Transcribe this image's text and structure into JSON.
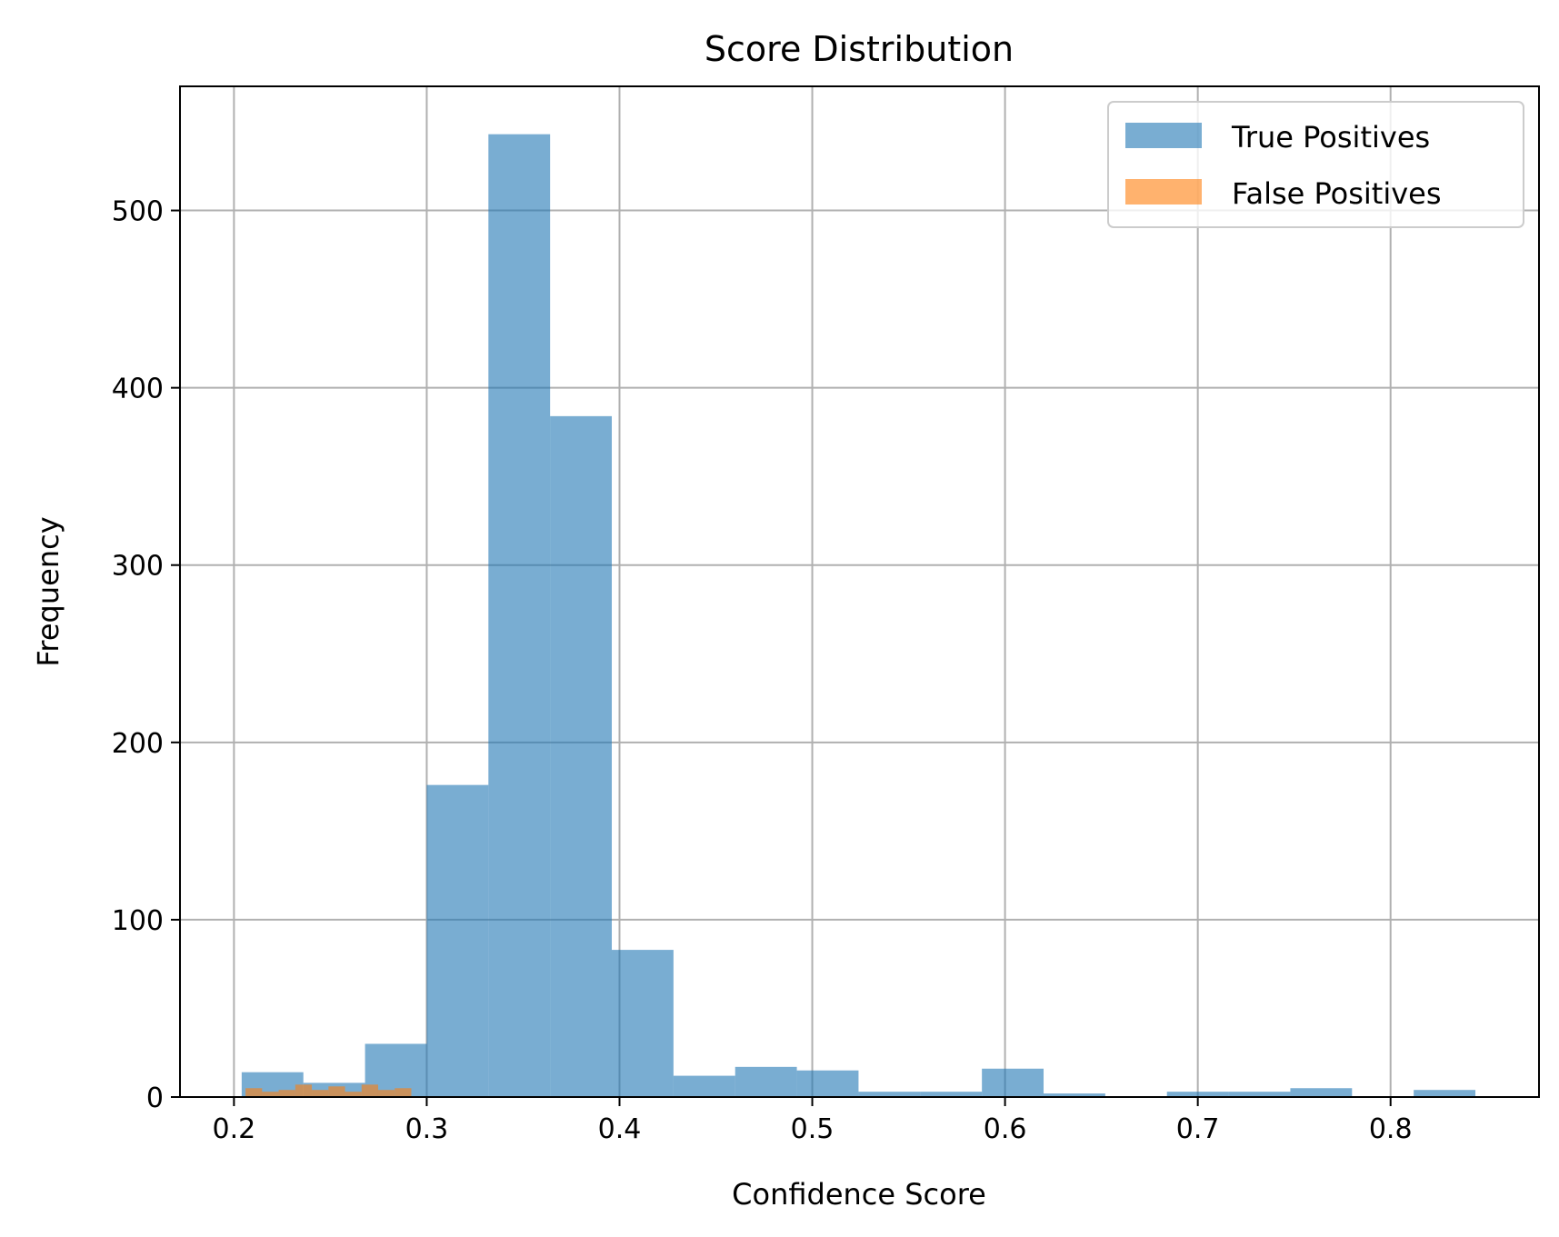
{
  "chart_data": {
    "type": "bar",
    "title": "Score Distribution",
    "xlabel": "Confidence Score",
    "ylabel": "Frequency",
    "xlim": [
      0.172,
      0.877
    ],
    "ylim": [
      0,
      570
    ],
    "xticks": [
      0.2,
      0.3,
      0.4,
      0.5,
      0.6,
      0.7,
      0.8
    ],
    "xtick_labels": [
      "0.2",
      "0.3",
      "0.4",
      "0.5",
      "0.6",
      "0.7",
      "0.8"
    ],
    "yticks": [
      0,
      100,
      200,
      300,
      400,
      500
    ],
    "ytick_labels": [
      "0",
      "100",
      "200",
      "300",
      "400",
      "500"
    ],
    "grid": true,
    "legend_position": "top-right",
    "series": [
      {
        "name": "True Positives",
        "color": "#1f77b4",
        "opacity": 0.6,
        "bin_edges": [
          0.204,
          0.236,
          0.268,
          0.3,
          0.332,
          0.364,
          0.396,
          0.428,
          0.46,
          0.492,
          0.524,
          0.556,
          0.588,
          0.62,
          0.652,
          0.684,
          0.716,
          0.748,
          0.78,
          0.812,
          0.844
        ],
        "counts": [
          14,
          8,
          30,
          176,
          543,
          384,
          83,
          12,
          17,
          15,
          3,
          3,
          16,
          2,
          0,
          3,
          3,
          5,
          0,
          4
        ]
      },
      {
        "name": "False Positives",
        "color": "#ff7f0e",
        "opacity": 0.6,
        "bin_edges": [
          0.206,
          0.2146,
          0.2232,
          0.2318,
          0.2404,
          0.249,
          0.2576,
          0.2662,
          0.2748,
          0.2834,
          0.292
        ],
        "counts": [
          5,
          3,
          4,
          7,
          4,
          6,
          3,
          7,
          4,
          5
        ]
      }
    ]
  }
}
